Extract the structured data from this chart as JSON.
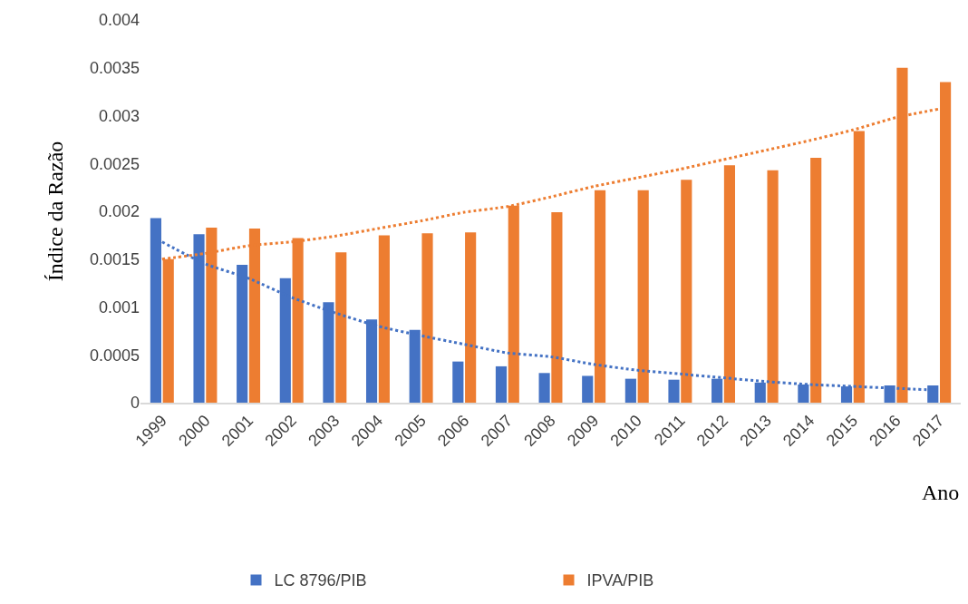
{
  "chart_data": {
    "type": "bar",
    "xlabel": "Ano",
    "ylabel": "Índice da Razão",
    "categories": [
      "1999",
      "2000",
      "2001",
      "2002",
      "2003",
      "2004",
      "2005",
      "2006",
      "2007",
      "2008",
      "2009",
      "2010",
      "2011",
      "2012",
      "2013",
      "2014",
      "2015",
      "2016",
      "2017"
    ],
    "series": [
      {
        "name": "LC 8796/PIB",
        "color": "#4472c4",
        "values": [
          0.00193,
          0.00176,
          0.00144,
          0.0013,
          0.00105,
          0.00087,
          0.00076,
          0.00043,
          0.00038,
          0.00031,
          0.00028,
          0.00025,
          0.00024,
          0.00025,
          0.00021,
          0.00019,
          0.00017,
          0.00018,
          0.00018
        ]
      },
      {
        "name": "IPVA/PIB",
        "color": "#ed7d31",
        "values": [
          0.0015,
          0.00183,
          0.00182,
          0.00172,
          0.00157,
          0.00175,
          0.00177,
          0.00178,
          0.00206,
          0.00199,
          0.00222,
          0.00222,
          0.00233,
          0.00248,
          0.00243,
          0.00256,
          0.00284,
          0.0035,
          0.00335
        ]
      },
      {
        "type": "line",
        "line_style": "dotted",
        "color": "#4472c4",
        "values": [
          0.00168,
          0.00145,
          0.0013,
          0.0011,
          0.00094,
          0.0008,
          0.0007,
          0.00061,
          0.00052,
          0.00048,
          0.0004,
          0.00034,
          0.0003,
          0.00026,
          0.00022,
          0.00019,
          0.00017,
          0.00015,
          0.00013
        ]
      },
      {
        "type": "line",
        "line_style": "dotted",
        "color": "#ed7d31",
        "values": [
          0.0015,
          0.00156,
          0.00164,
          0.00168,
          0.00174,
          0.00182,
          0.0019,
          0.00199,
          0.00205,
          0.00215,
          0.00226,
          0.00235,
          0.00244,
          0.00254,
          0.00264,
          0.00274,
          0.00285,
          0.00298,
          0.00307
        ]
      }
    ],
    "ylim": [
      0,
      0.004
    ],
    "yticks": [
      0,
      0.0005,
      0.001,
      0.0015,
      0.002,
      0.0025,
      0.003,
      0.0035,
      0.004
    ],
    "grid": false,
    "legend": "bottom"
  }
}
